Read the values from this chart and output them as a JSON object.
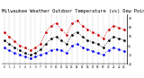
{
  "title": "Milwaukee Weather Outdoor Temperature (vs) Dew Point (Last 24 Hours)",
  "temp": [
    55,
    50,
    45,
    40,
    38,
    35,
    38,
    42,
    55,
    62,
    65,
    58,
    52,
    65,
    68,
    62,
    58,
    55,
    52,
    48,
    58,
    62,
    60,
    58
  ],
  "dew": [
    38,
    35,
    32,
    30,
    28,
    26,
    28,
    30,
    32,
    35,
    36,
    35,
    32,
    40,
    42,
    38,
    36,
    34,
    32,
    30,
    35,
    38,
    36,
    34
  ],
  "black": [
    46,
    42,
    38,
    35,
    32,
    30,
    32,
    36,
    42,
    48,
    50,
    46,
    42,
    52,
    55,
    50,
    46,
    44,
    42,
    38,
    46,
    50,
    48,
    46
  ],
  "hours": [
    0,
    1,
    2,
    3,
    4,
    5,
    6,
    7,
    8,
    9,
    10,
    11,
    12,
    13,
    14,
    15,
    16,
    17,
    18,
    19,
    20,
    21,
    22,
    23
  ],
  "temp_color": "#cc0000",
  "dew_color": "#0000ee",
  "black_color": "#000000",
  "bg_color": "#ffffff",
  "ylim": [
    20,
    75
  ],
  "ytick_vals": [
    20,
    30,
    40,
    50,
    60,
    70
  ],
  "ytick_labels": [
    "20",
    "30",
    "40",
    "50",
    "60",
    "70"
  ],
  "grid_color": "#999999",
  "title_fontsize": 3.8,
  "markersize": 1.8,
  "linewidth": 0.6
}
